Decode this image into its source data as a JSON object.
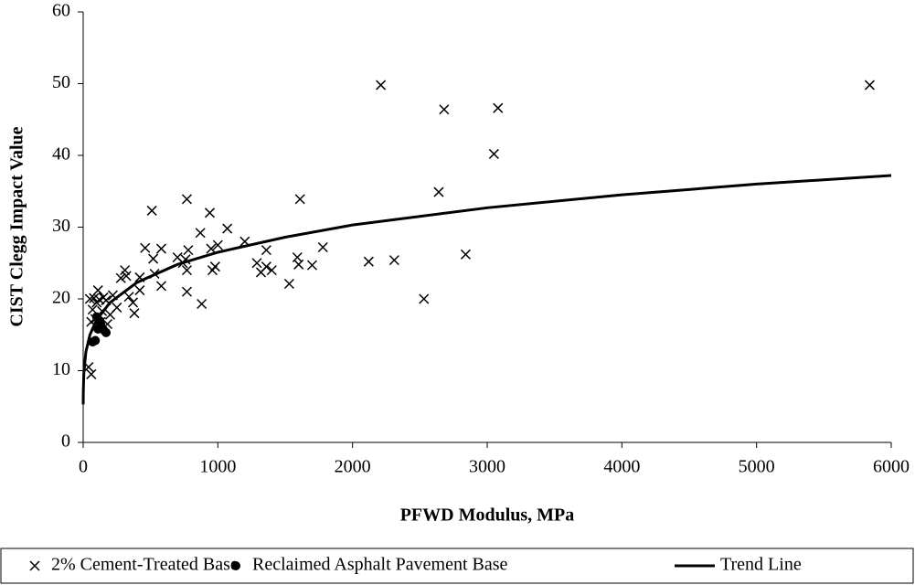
{
  "chart_data": {
    "type": "scatter",
    "x_label": "PFWD Modulus, MPa",
    "y_label": "CIST Clegg Impact Value",
    "xlim": [
      0,
      6000
    ],
    "xticks": [
      0,
      1000,
      2000,
      3000,
      4000,
      5000,
      6000
    ],
    "ylim": [
      0,
      60
    ],
    "yticks": [
      0,
      10,
      20,
      30,
      40,
      50,
      60
    ],
    "grid": false,
    "legend": "bottom",
    "series": [
      {
        "name": "2% Cement-Treated Base",
        "marker": "x",
        "color": "#000000",
        "x": [
          5840,
          2210,
          2680,
          3080,
          3050,
          2640,
          2840,
          2310,
          2120,
          2530,
          1780,
          1700,
          1610,
          1590,
          1600,
          1530,
          1400,
          1360,
          1360,
          1320,
          1290,
          1200,
          1070,
          1000,
          980,
          950,
          940,
          960,
          870,
          880,
          770,
          770,
          770,
          760,
          780,
          740,
          700,
          580,
          580,
          520,
          510,
          530,
          460,
          420,
          420,
          380,
          370,
          340,
          320,
          310,
          280,
          250,
          220,
          200,
          180,
          170,
          150,
          140,
          130,
          120,
          110,
          100,
          90,
          80,
          70,
          60,
          50,
          40,
          60
        ],
        "values": [
          49.8,
          49.8,
          46.4,
          46.6,
          40.2,
          34.9,
          26.2,
          25.4,
          25.2,
          20.0,
          27.2,
          24.7,
          33.9,
          25.8,
          24.8,
          22.1,
          24.0,
          26.8,
          24.5,
          23.7,
          25.0,
          28.0,
          29.8,
          27.5,
          24.5,
          27.0,
          32.0,
          24.0,
          29.2,
          19.3,
          33.9,
          21.0,
          24.0,
          25.5,
          26.8,
          25.0,
          25.8,
          27.0,
          21.8,
          25.6,
          32.3,
          23.5,
          27.1,
          23.0,
          21.2,
          18.0,
          19.5,
          20.3,
          23.2,
          24.0,
          22.9,
          18.8,
          20.5,
          17.8,
          16.5,
          19.8,
          20.2,
          18.3,
          16.8,
          19.9,
          21.2,
          19.5,
          17.2,
          20.1,
          18.5,
          16.8,
          20.0,
          10.5,
          9.5
        ]
      },
      {
        "name": "Reclaimed Asphalt Pavement Base",
        "marker": "dot",
        "color": "#000000",
        "x": [
          70,
          90,
          110,
          130,
          150,
          170,
          120,
          100
        ],
        "values": [
          14.0,
          14.2,
          15.8,
          16.5,
          15.7,
          15.3,
          17.0,
          17.5
        ]
      },
      {
        "name": "Trend Line",
        "marker": "line",
        "color": "#000000",
        "x": [
          0.2,
          1,
          5,
          20,
          50,
          100,
          200,
          400,
          700,
          1000,
          1500,
          2000,
          3000,
          4000,
          5000,
          6000
        ],
        "values": [
          5.3,
          7.1,
          9.7,
          12.6,
          15.0,
          17.1,
          19.5,
          22.3,
          24.8,
          26.5,
          28.6,
          30.3,
          32.7,
          34.5,
          36.0,
          37.2
        ]
      }
    ]
  }
}
